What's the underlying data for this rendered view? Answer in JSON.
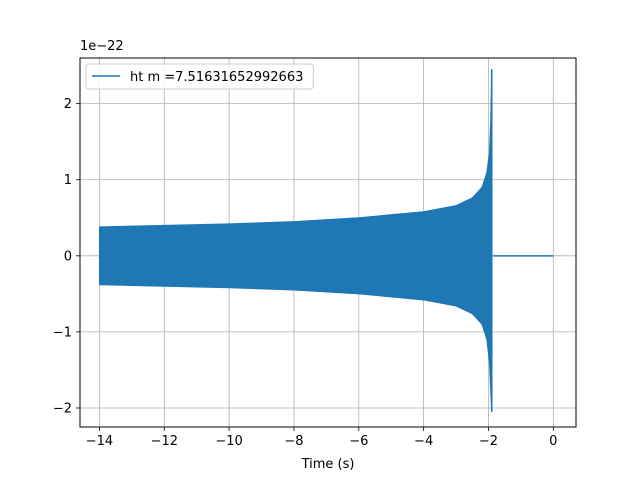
{
  "chart_data": {
    "type": "line",
    "title": "",
    "xlabel": "Time (s)",
    "ylabel": "",
    "y_offset_label": "1e−22",
    "xlim": [
      -14.6,
      0.7
    ],
    "ylim": [
      -2.25,
      2.6
    ],
    "x_ticks": [
      -14,
      -12,
      -10,
      -8,
      -6,
      -4,
      -2,
      0
    ],
    "x_tick_labels": [
      "−14",
      "−12",
      "−10",
      "−8",
      "−6",
      "−4",
      "−2",
      "0"
    ],
    "y_ticks": [
      -2,
      -1,
      0,
      1,
      2
    ],
    "y_tick_labels": [
      "−2",
      "−1",
      "0",
      "1",
      "2"
    ],
    "grid": true,
    "legend_position": "top-left",
    "series": [
      {
        "name": "ht m =7.51631652992663",
        "color": "#1f77b4",
        "envelope_upper": {
          "x": [
            -14.0,
            -12.0,
            -10.0,
            -8.0,
            -6.0,
            -4.0,
            -3.0,
            -2.5,
            -2.2,
            -2.05,
            -1.97,
            -1.93,
            -1.9
          ],
          "y": [
            0.38,
            0.4,
            0.42,
            0.45,
            0.5,
            0.58,
            0.66,
            0.76,
            0.9,
            1.1,
            1.35,
            1.8,
            2.45
          ]
        },
        "envelope_lower": {
          "x": [
            -14.0,
            -12.0,
            -10.0,
            -8.0,
            -6.0,
            -4.0,
            -3.0,
            -2.5,
            -2.2,
            -2.05,
            -1.97,
            -1.93,
            -1.9
          ],
          "y": [
            -0.38,
            -0.4,
            -0.42,
            -0.45,
            -0.5,
            -0.58,
            -0.66,
            -0.76,
            -0.9,
            -1.1,
            -1.4,
            -1.8,
            -2.05
          ]
        },
        "tail": {
          "x": [
            -1.86,
            0.0
          ],
          "y": [
            0.0,
            0.0
          ]
        }
      }
    ]
  }
}
